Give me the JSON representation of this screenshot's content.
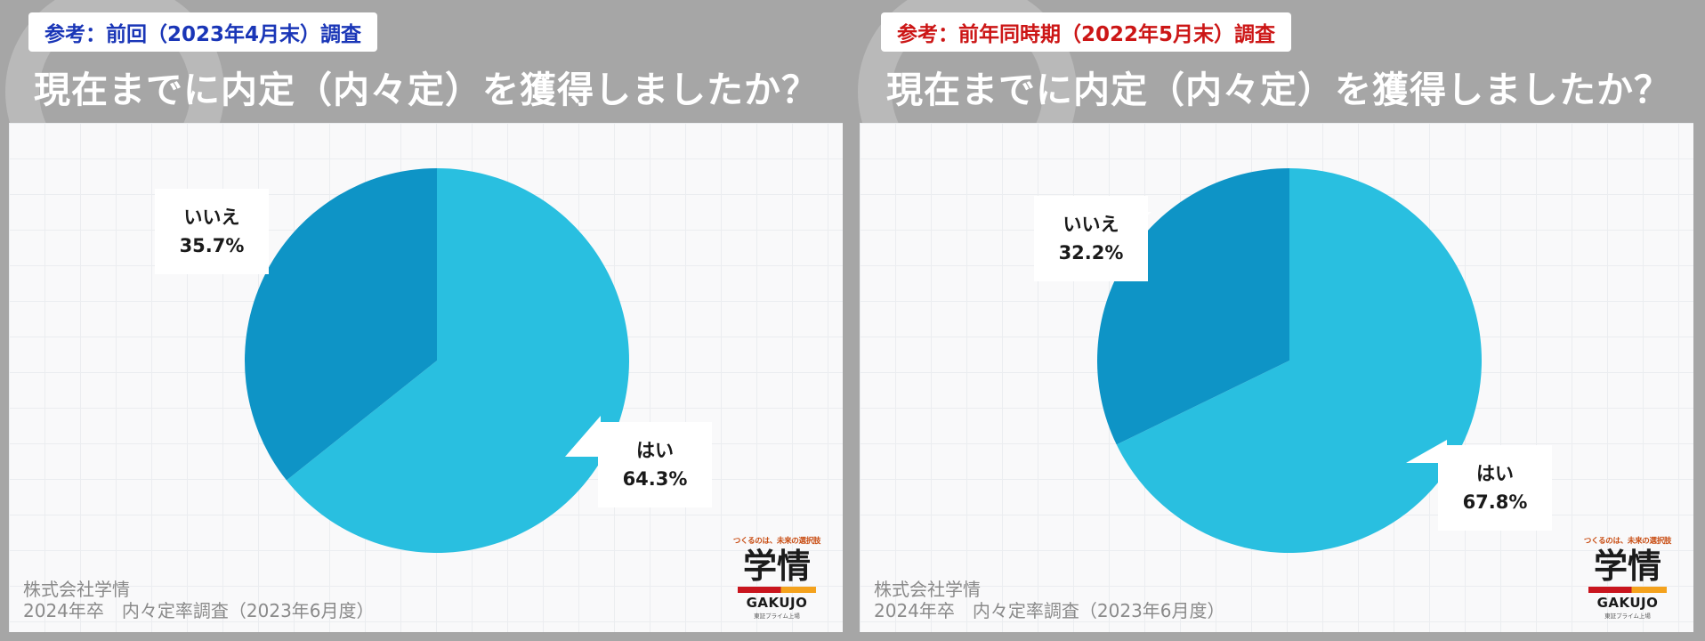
{
  "colors": {
    "yes": "#29bfe0",
    "no": "#0e94c6",
    "badge_left": "#1a36b7",
    "badge_right": "#cc1616"
  },
  "panels": [
    {
      "badge": "参考：前回（2023年4月末）調査",
      "title": "現在までに内定（内々定）を獲得しましたか？",
      "source_company": "株式会社学情",
      "source_survey": "2024年卒　内々定率調査（2023年6月度）",
      "logo": {
        "tagline": "つくるのは、未来の選択肢",
        "mark": "学情",
        "name": "GAKUJO",
        "sub": "東証プライム上場"
      },
      "slice_labels": [
        {
          "label": "はい",
          "value_text": "64.3%"
        },
        {
          "label": "いいえ",
          "value_text": "35.7%"
        }
      ]
    },
    {
      "badge": "参考：前年同時期（2022年5月末）調査",
      "title": "現在までに内定（内々定）を獲得しましたか？",
      "source_company": "株式会社学情",
      "source_survey": "2024年卒　内々定率調査（2023年6月度）",
      "logo": {
        "tagline": "つくるのは、未来の選択肢",
        "mark": "学情",
        "name": "GAKUJO",
        "sub": "東証プライム上場"
      },
      "slice_labels": [
        {
          "label": "はい",
          "value_text": "67.8%"
        },
        {
          "label": "いいえ",
          "value_text": "32.2%"
        }
      ]
    }
  ],
  "chart_data": [
    {
      "type": "pie",
      "title": "現在までに内定（内々定）を獲得しましたか？",
      "categories": [
        "はい",
        "いいえ"
      ],
      "values": [
        64.3,
        35.7
      ],
      "unit": "%"
    },
    {
      "type": "pie",
      "title": "現在までに内定（内々定）を獲得しましたか？",
      "categories": [
        "はい",
        "いいえ"
      ],
      "values": [
        67.8,
        32.2
      ],
      "unit": "%"
    }
  ]
}
